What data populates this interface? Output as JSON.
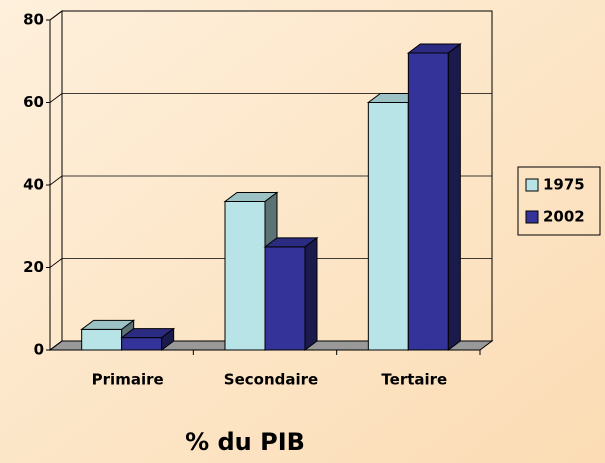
{
  "chart_data": {
    "type": "bar3d",
    "title": "% du PIB",
    "categories": [
      "Primaire",
      "Secondaire",
      "Tertaire"
    ],
    "series": [
      {
        "name": "1975",
        "color": "#b8e4e8",
        "values": [
          5,
          36,
          60
        ]
      },
      {
        "name": "2002",
        "color": "#333399",
        "values": [
          3,
          25,
          72
        ]
      }
    ],
    "ylim": [
      0,
      80
    ],
    "yticks": [
      0,
      20,
      40,
      60,
      80
    ],
    "grid": true,
    "legend": "right"
  }
}
